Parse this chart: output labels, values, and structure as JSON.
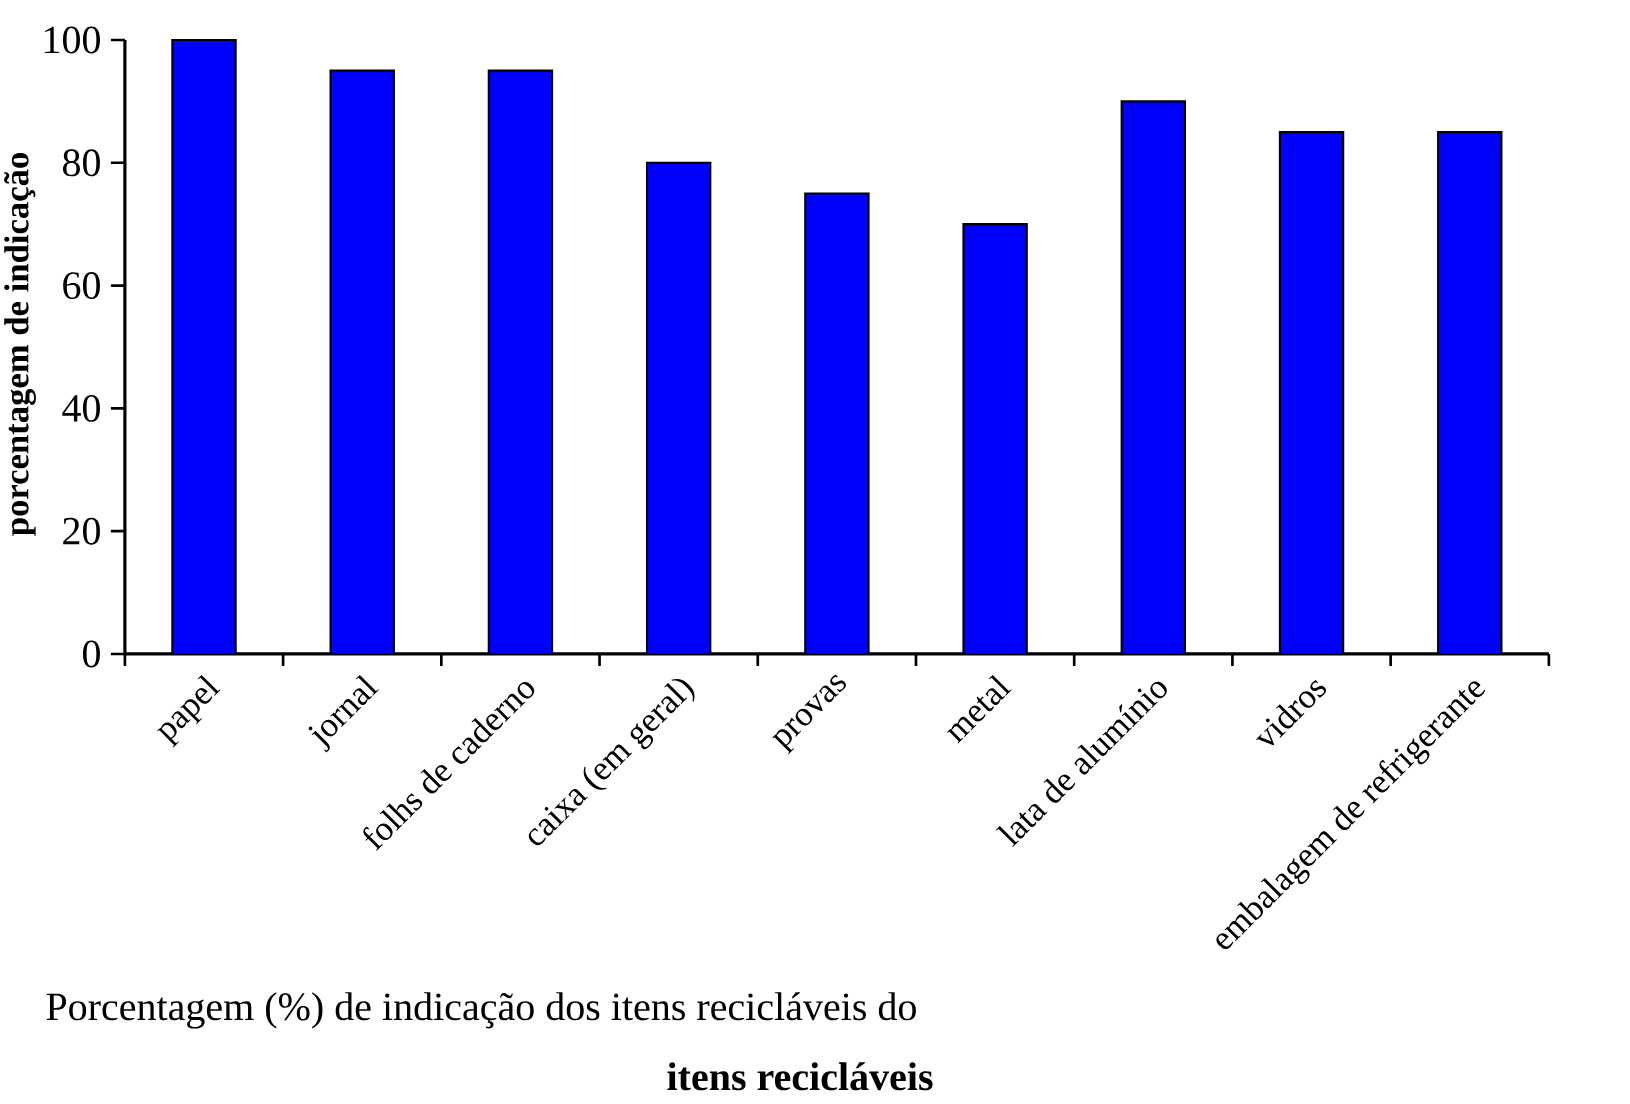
{
  "chart_data": {
    "type": "bar",
    "categories": [
      "papel",
      "jornal",
      "folhs de caderno",
      "caixa (em geral)",
      "provas",
      "metal",
      "lata de alumínio",
      "vidros",
      "embalagem de refrigerante"
    ],
    "values": [
      100,
      95,
      95,
      80,
      75,
      70,
      90,
      85,
      85
    ],
    "color": "#0000ff",
    "ylabel": "porcentagem de indicação",
    "xlabel": "itens recicláveis",
    "annotations": [
      "Porcentagem (%) de indicação dos itens recicláveis do"
    ],
    "ylim": [
      0,
      100
    ],
    "yticks": [
      0,
      20,
      40,
      60,
      80,
      100
    ],
    "grid": false
  }
}
